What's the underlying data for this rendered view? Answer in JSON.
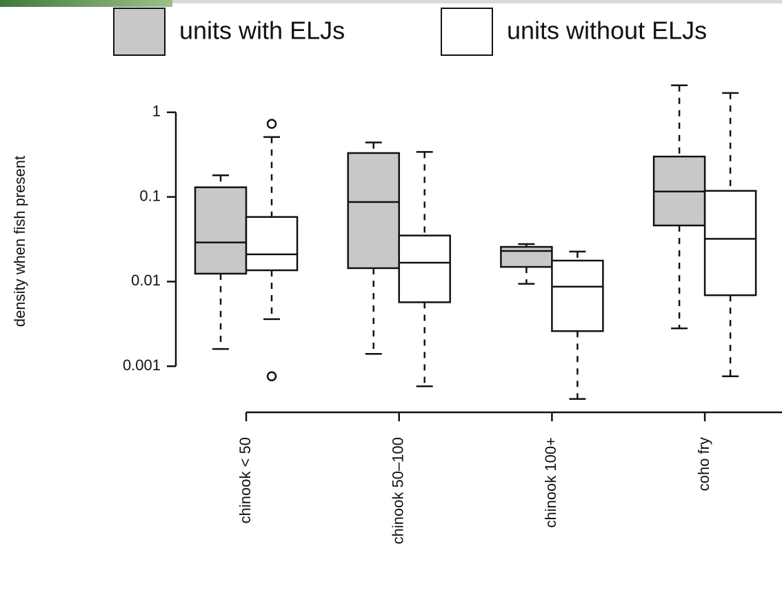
{
  "chart_data": {
    "type": "box",
    "y_label": "density when fish present",
    "categories": [
      "chinook < 50",
      "chinook 50–100",
      "chinook 100+",
      "coho fry"
    ],
    "series": [
      {
        "name": "units with ELJs",
        "color": "#c8c8c8",
        "boxes": [
          {
            "whislo": 0.0016,
            "q1": 0.0124,
            "med": 0.029,
            "q3": 0.13,
            "whishi": 0.18,
            "fliers": []
          },
          {
            "whislo": 0.0014,
            "q1": 0.0144,
            "med": 0.087,
            "q3": 0.33,
            "whishi": 0.44,
            "fliers": []
          },
          {
            "whislo": 0.0094,
            "q1": 0.0149,
            "med": 0.023,
            "q3": 0.0257,
            "whishi": 0.0277,
            "fliers": []
          },
          {
            "whislo": 0.0028,
            "q1": 0.046,
            "med": 0.116,
            "q3": 0.3,
            "whishi": 2.08,
            "fliers": []
          }
        ]
      },
      {
        "name": "units without ELJs",
        "color": "#ffffff",
        "boxes": [
          {
            "whislo": 0.0036,
            "q1": 0.0136,
            "med": 0.021,
            "q3": 0.058,
            "whishi": 0.51,
            "fliers": [
              0.73,
              0.00076
            ]
          },
          {
            "whislo": 0.00058,
            "q1": 0.0057,
            "med": 0.0167,
            "q3": 0.035,
            "whishi": 0.34,
            "fliers": []
          },
          {
            "whislo": 0.00041,
            "q1": 0.0026,
            "med": 0.0087,
            "q3": 0.0177,
            "whishi": 0.0226,
            "fliers": []
          },
          {
            "whislo": 0.00076,
            "q1": 0.0069,
            "med": 0.032,
            "q3": 0.118,
            "whishi": 1.69,
            "fliers": []
          }
        ]
      }
    ],
    "ylim": [
      0.0004,
      2.5
    ],
    "yticks": [
      1,
      0.1,
      0.01,
      0.001
    ],
    "log_y": true
  }
}
